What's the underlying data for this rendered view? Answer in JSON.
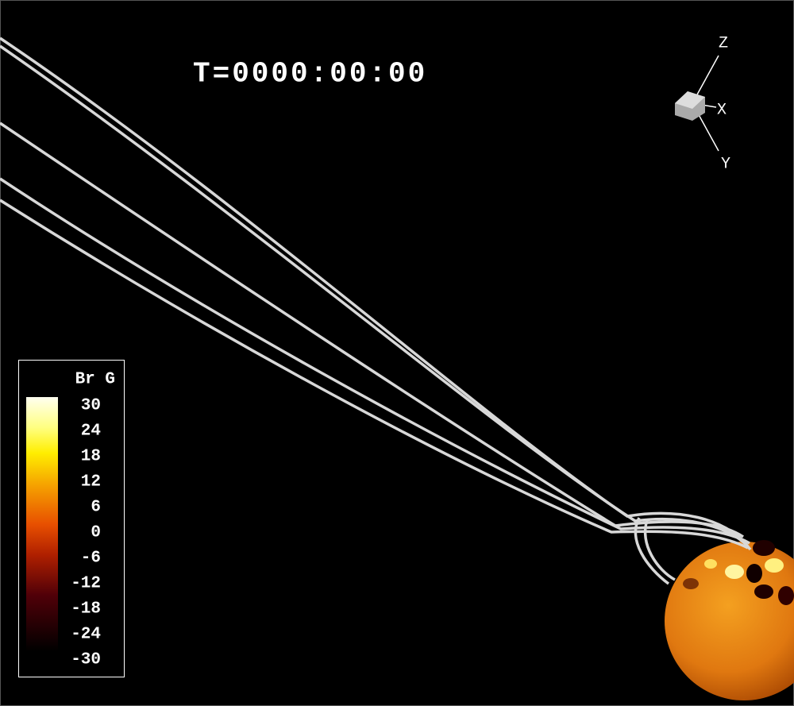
{
  "time_label": "T=0000:00:00",
  "colorbar": {
    "title": "Br G",
    "lim": [
      -30,
      30
    ],
    "ticks": [
      30,
      24,
      18,
      12,
      6,
      0,
      -6,
      -12,
      -18,
      -24,
      -30
    ]
  },
  "axes_triad": {
    "labels": [
      "Z",
      "X",
      "Y"
    ]
  }
}
